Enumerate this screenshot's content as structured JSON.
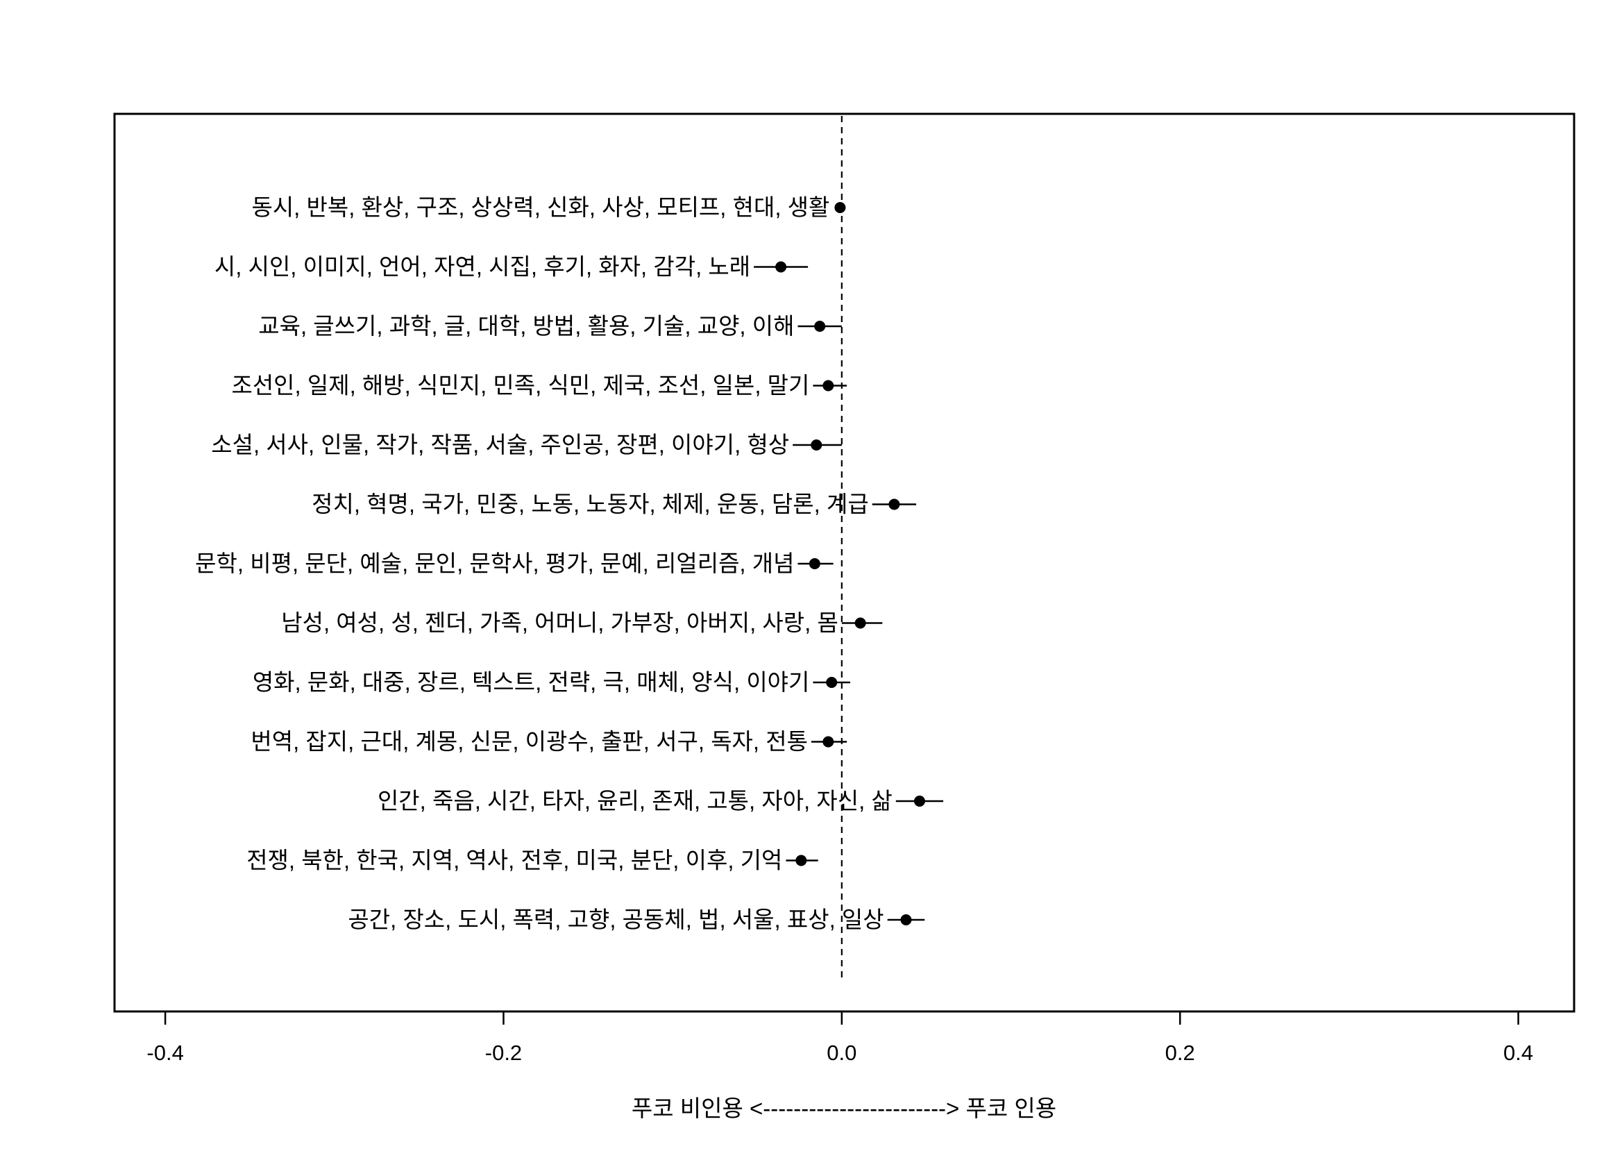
{
  "chart_data": {
    "type": "scatter",
    "subtype": "coefficient-plot-with-interval",
    "title": "",
    "xlabel": "푸코 비인용 <------------------------> 푸코 인용",
    "ylabel": "",
    "xlim": [
      -0.43,
      0.433
    ],
    "xticks": [
      -0.4,
      -0.2,
      0.0,
      0.2,
      0.4
    ],
    "xtick_labels": [
      "-0.4",
      "-0.2",
      "0.0",
      "0.2",
      "0.4"
    ],
    "reference_line": {
      "x": 0.0,
      "style": "dashed"
    },
    "grid": false,
    "legend": "none",
    "marker_color": "#000000",
    "topics": [
      {
        "label": "동시, 반복, 환상, 구조, 상상력, 신화, 사상, 모티프, 현대, 생활",
        "estimate": -0.001,
        "lower": -0.004,
        "upper": 0.002
      },
      {
        "label": "시, 시인, 이미지, 언어, 자연, 시집, 후기, 화자, 감각, 노래",
        "estimate": -0.036,
        "lower": -0.052,
        "upper": -0.02
      },
      {
        "label": "교육, 글쓰기, 과학, 글, 대학, 방법, 활용, 기술, 교양, 이해",
        "estimate": -0.013,
        "lower": -0.026,
        "upper": 0.0
      },
      {
        "label": "조선인, 일제, 해방, 식민지, 민족, 식민, 제국, 조선, 일본, 말기",
        "estimate": -0.008,
        "lower": -0.017,
        "upper": 0.003
      },
      {
        "label": "소설, 서사, 인물, 작가, 작품, 서술, 주인공, 장편, 이야기, 형상",
        "estimate": -0.015,
        "lower": -0.029,
        "upper": 0.0
      },
      {
        "label": "정치, 혁명, 국가, 민중, 노동, 노동자, 체제, 운동, 담론, 계급",
        "estimate": 0.031,
        "lower": 0.018,
        "upper": 0.044
      },
      {
        "label": "문학, 비평, 문단, 예술, 문인, 문학사, 평가, 문예, 리얼리즘, 개념",
        "estimate": -0.016,
        "lower": -0.026,
        "upper": -0.005
      },
      {
        "label": "남성, 여성, 성, 젠더, 가족, 어머니, 가부장, 아버지, 사랑, 몸",
        "estimate": 0.011,
        "lower": 0.0,
        "upper": 0.024
      },
      {
        "label": "영화, 문화, 대중, 장르, 텍스트, 전략, 극, 매체, 양식, 이야기",
        "estimate": -0.006,
        "lower": -0.017,
        "upper": 0.005
      },
      {
        "label": "번역, 잡지, 근대, 계몽, 신문, 이광수, 출판, 서구, 독자, 전통",
        "estimate": -0.008,
        "lower": -0.018,
        "upper": 0.003
      },
      {
        "label": "인간, 죽음, 시간, 타자, 윤리, 존재, 고통, 자아, 자신, 삶",
        "estimate": 0.046,
        "lower": 0.032,
        "upper": 0.06
      },
      {
        "label": "전쟁, 북한, 한국, 지역, 역사, 전후, 미국, 분단, 이후, 기억",
        "estimate": -0.024,
        "lower": -0.033,
        "upper": -0.014
      },
      {
        "label": "공간, 장소, 도시, 폭력, 고향, 공동체, 법, 서울, 표상, 일상",
        "estimate": 0.038,
        "lower": 0.027,
        "upper": 0.049
      }
    ]
  }
}
